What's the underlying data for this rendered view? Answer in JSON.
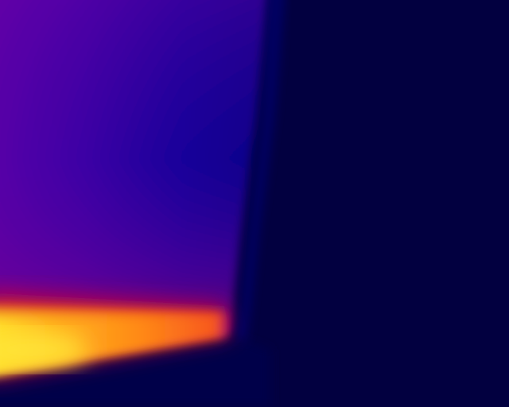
{
  "image": {
    "kind": "thermal-camera-view",
    "palette": "ironbow",
    "colors": {
      "background": "#020040",
      "cold": "#02003f",
      "cool_blue": "#1a0096",
      "mid_violet": "#48009f",
      "warm_magenta": "#9e006f",
      "hot_red": "#ee1f2a",
      "hot_orange": "#ff8a15",
      "hottest_yellow": "#ffd628"
    }
  }
}
